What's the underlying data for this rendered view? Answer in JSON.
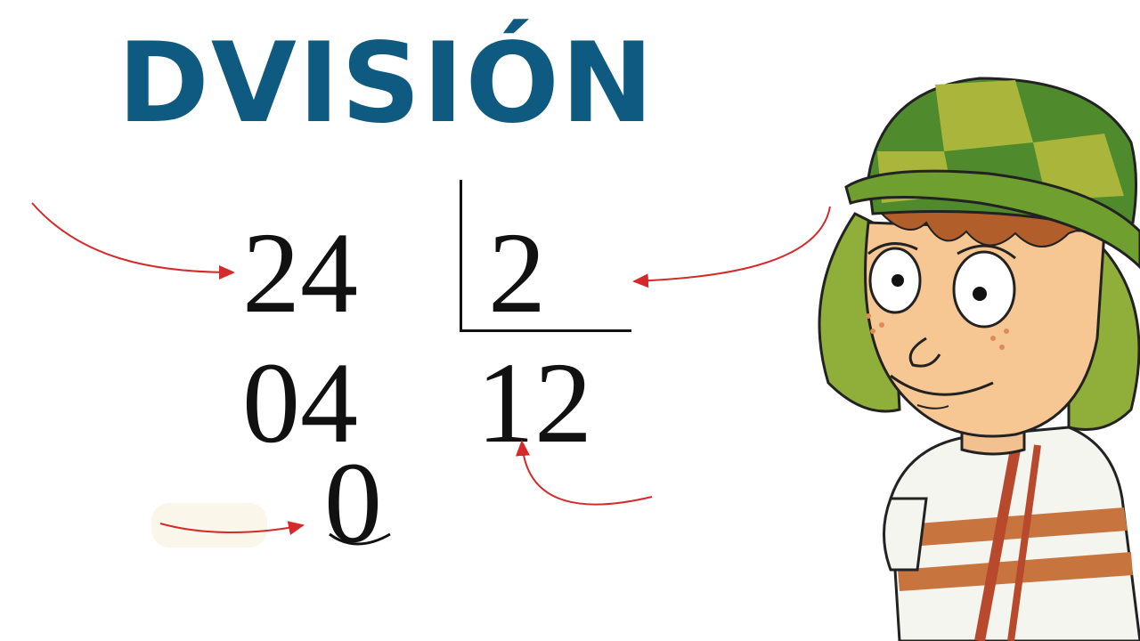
{
  "title": "DVISIÓN",
  "division": {
    "dividend": "24",
    "divisor": "2",
    "quotient": "12",
    "first_remainder": "04",
    "final_remainder": "0"
  },
  "colors": {
    "title": "#0e5a80",
    "arrows": "#d42a2a",
    "digits": "#111111"
  },
  "icons": [
    "arrow-icon",
    "chavo-character-illustration"
  ]
}
